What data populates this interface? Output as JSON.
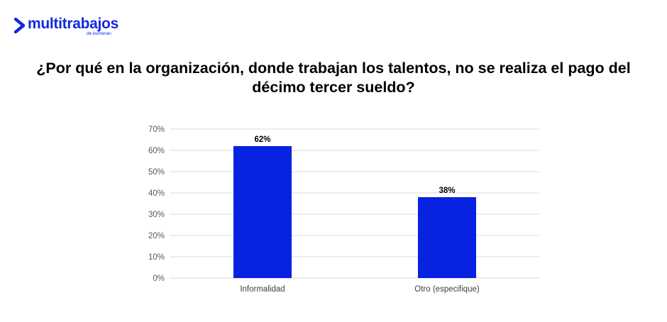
{
  "brand": {
    "name": "multitrabajos",
    "tagline": "de bumeran",
    "color": "#1428e0",
    "accent_color": "#0a1bb0"
  },
  "chart_data": {
    "type": "bar",
    "title": "¿Por qué en la organización, donde trabajan los talentos, no se realiza el pago del décimo tercer sueldo?",
    "categories": [
      "Informalidad",
      "Otro (especifique)"
    ],
    "values": [
      62,
      38
    ],
    "data_labels": [
      "62%",
      "38%"
    ],
    "ylim": [
      0,
      70
    ],
    "yticks": [
      0,
      10,
      20,
      30,
      40,
      50,
      60,
      70
    ],
    "ytick_labels": [
      "0%",
      "10%",
      "20%",
      "30%",
      "40%",
      "50%",
      "60%",
      "70%"
    ],
    "xlabel": "",
    "ylabel": "",
    "grid": true,
    "bar_color": "#0722e0",
    "grid_color": "#d9d9d9"
  }
}
